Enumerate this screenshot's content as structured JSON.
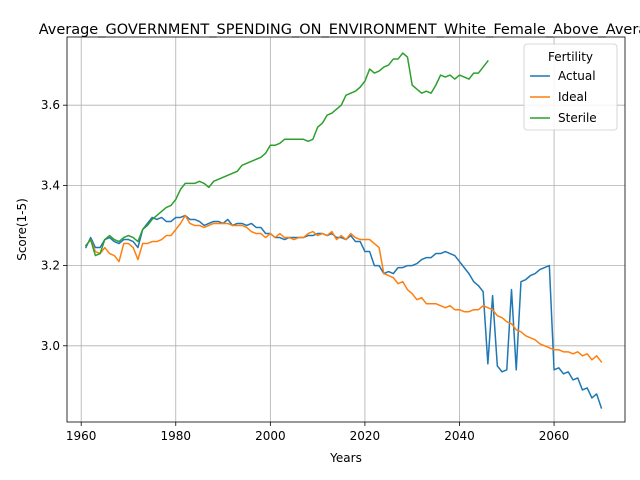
{
  "chart_data": {
    "type": "line",
    "title": "Average_GOVERNMENT_SPENDING_ON_ENVIRONMENT_White_Female_Above_Average",
    "xlabel": "Years",
    "ylabel": "Score(1-5)",
    "xlim": [
      1957,
      2075
    ],
    "ylim": [
      2.81,
      3.77
    ],
    "xticks": [
      1960,
      1980,
      2000,
      2020,
      2040,
      2060
    ],
    "yticks": [
      3.0,
      3.2,
      3.4,
      3.6
    ],
    "ytick_labels": [
      "3.0",
      "3.2",
      "3.4",
      "3.6"
    ],
    "grid": true,
    "legend": {
      "title": "Fertility",
      "position": "top-right"
    },
    "series": [
      {
        "name": "Actual",
        "color": "#1f77b4",
        "x": [
          1961,
          1962,
          1963,
          1964,
          1965,
          1966,
          1967,
          1968,
          1969,
          1970,
          1971,
          1972,
          1973,
          1974,
          1975,
          1976,
          1977,
          1978,
          1979,
          1980,
          1981,
          1982,
          1983,
          1984,
          1985,
          1986,
          1987,
          1988,
          1989,
          1990,
          1991,
          1992,
          1993,
          1994,
          1995,
          1996,
          1997,
          1998,
          1999,
          2000,
          2001,
          2002,
          2003,
          2004,
          2005,
          2006,
          2007,
          2008,
          2009,
          2010,
          2011,
          2012,
          2013,
          2014,
          2015,
          2016,
          2017,
          2018,
          2019,
          2020,
          2021,
          2022,
          2023,
          2024,
          2025,
          2026,
          2027,
          2028,
          2029,
          2030,
          2031,
          2032,
          2033,
          2034,
          2035,
          2036,
          2037,
          2038,
          2039,
          2040,
          2041,
          2042,
          2043,
          2044,
          2045,
          2046,
          2047,
          2048,
          2049,
          2050,
          2051,
          2052,
          2053,
          2054,
          2055,
          2056,
          2057,
          2058,
          2059,
          2060,
          2061,
          2062,
          2063,
          2064,
          2065,
          2066,
          2067,
          2068,
          2069,
          2070
        ],
        "values": [
          3.245,
          3.27,
          3.245,
          3.245,
          3.265,
          3.27,
          3.26,
          3.255,
          3.265,
          3.265,
          3.26,
          3.245,
          3.29,
          3.305,
          3.32,
          3.315,
          3.32,
          3.31,
          3.31,
          3.32,
          3.32,
          3.325,
          3.315,
          3.315,
          3.31,
          3.3,
          3.305,
          3.31,
          3.31,
          3.305,
          3.315,
          3.3,
          3.305,
          3.305,
          3.3,
          3.305,
          3.295,
          3.295,
          3.28,
          3.28,
          3.27,
          3.27,
          3.265,
          3.27,
          3.27,
          3.27,
          3.27,
          3.275,
          3.275,
          3.28,
          3.28,
          3.275,
          3.28,
          3.27,
          3.27,
          3.265,
          3.275,
          3.26,
          3.26,
          3.235,
          3.235,
          3.2,
          3.2,
          3.18,
          3.185,
          3.18,
          3.195,
          3.195,
          3.2,
          3.2,
          3.205,
          3.215,
          3.22,
          3.22,
          3.23,
          3.23,
          3.235,
          3.23,
          3.225,
          3.21,
          3.195,
          3.18,
          3.16,
          3.15,
          3.135,
          2.955,
          3.125,
          2.95,
          2.935,
          2.94,
          3.14,
          2.94,
          3.16,
          3.165,
          3.175,
          3.18,
          3.19,
          3.195,
          3.2,
          2.94,
          2.945,
          2.93,
          2.935,
          2.915,
          2.92,
          2.89,
          2.895,
          2.87,
          2.88,
          2.845
        ]
      },
      {
        "name": "Ideal",
        "color": "#ff7f0e",
        "x": [
          1961,
          1962,
          1963,
          1964,
          1965,
          1966,
          1967,
          1968,
          1969,
          1970,
          1971,
          1972,
          1973,
          1974,
          1975,
          1976,
          1977,
          1978,
          1979,
          1980,
          1981,
          1982,
          1983,
          1984,
          1985,
          1986,
          1987,
          1988,
          1989,
          1990,
          1991,
          1992,
          1993,
          1994,
          1995,
          1996,
          1997,
          1998,
          1999,
          2000,
          2001,
          2002,
          2003,
          2004,
          2005,
          2006,
          2007,
          2008,
          2009,
          2010,
          2011,
          2012,
          2013,
          2014,
          2015,
          2016,
          2017,
          2018,
          2019,
          2020,
          2021,
          2022,
          2023,
          2024,
          2025,
          2026,
          2027,
          2028,
          2029,
          2030,
          2031,
          2032,
          2033,
          2034,
          2035,
          2036,
          2037,
          2038,
          2039,
          2040,
          2041,
          2042,
          2043,
          2044,
          2045,
          2046,
          2047,
          2048,
          2049,
          2050,
          2051,
          2052,
          2053,
          2054,
          2055,
          2056,
          2057,
          2058,
          2059,
          2060,
          2061,
          2062,
          2063,
          2064,
          2065,
          2066,
          2067,
          2068,
          2069,
          2070
        ],
        "values": [
          3.25,
          3.265,
          3.235,
          3.23,
          3.245,
          3.23,
          3.225,
          3.21,
          3.255,
          3.255,
          3.245,
          3.215,
          3.255,
          3.255,
          3.26,
          3.26,
          3.265,
          3.275,
          3.275,
          3.29,
          3.305,
          3.325,
          3.305,
          3.3,
          3.3,
          3.295,
          3.3,
          3.305,
          3.305,
          3.305,
          3.305,
          3.3,
          3.3,
          3.3,
          3.295,
          3.285,
          3.28,
          3.28,
          3.27,
          3.28,
          3.27,
          3.28,
          3.27,
          3.27,
          3.265,
          3.27,
          3.27,
          3.28,
          3.285,
          3.275,
          3.28,
          3.275,
          3.285,
          3.265,
          3.275,
          3.265,
          3.28,
          3.27,
          3.265,
          3.265,
          3.265,
          3.255,
          3.245,
          3.18,
          3.175,
          3.17,
          3.155,
          3.16,
          3.14,
          3.13,
          3.115,
          3.12,
          3.105,
          3.105,
          3.105,
          3.1,
          3.095,
          3.1,
          3.09,
          3.09,
          3.085,
          3.085,
          3.09,
          3.09,
          3.1,
          3.095,
          3.09,
          3.075,
          3.07,
          3.06,
          3.055,
          3.04,
          3.035,
          3.025,
          3.02,
          3.015,
          3.005,
          3.0,
          2.995,
          2.99,
          2.99,
          2.985,
          2.985,
          2.98,
          2.985,
          2.975,
          2.98,
          2.965,
          2.975,
          2.96
        ]
      },
      {
        "name": "Sterile",
        "color": "#2ca02c",
        "x": [
          1961,
          1962,
          1963,
          1964,
          1965,
          1966,
          1967,
          1968,
          1969,
          1970,
          1971,
          1972,
          1973,
          1974,
          1975,
          1976,
          1977,
          1978,
          1979,
          1980,
          1981,
          1982,
          1983,
          1984,
          1985,
          1986,
          1987,
          1988,
          1989,
          1990,
          1991,
          1992,
          1993,
          1994,
          1995,
          1996,
          1997,
          1998,
          1999,
          2000,
          2001,
          2002,
          2003,
          2004,
          2005,
          2006,
          2007,
          2008,
          2009,
          2010,
          2011,
          2012,
          2013,
          2014,
          2015,
          2016,
          2017,
          2018,
          2019,
          2020,
          2021,
          2022,
          2023,
          2024,
          2025,
          2026,
          2027,
          2028,
          2029,
          2030,
          2031,
          2032,
          2033,
          2034,
          2035,
          2036,
          2037,
          2038,
          2039,
          2040,
          2041,
          2042,
          2043,
          2044,
          2045,
          2046
        ],
        "values": [
          3.25,
          3.265,
          3.225,
          3.23,
          3.265,
          3.275,
          3.265,
          3.26,
          3.27,
          3.275,
          3.27,
          3.26,
          3.29,
          3.3,
          3.315,
          3.325,
          3.335,
          3.345,
          3.35,
          3.365,
          3.39,
          3.405,
          3.405,
          3.405,
          3.41,
          3.405,
          3.395,
          3.41,
          3.415,
          3.42,
          3.425,
          3.43,
          3.435,
          3.45,
          3.455,
          3.46,
          3.465,
          3.47,
          3.48,
          3.5,
          3.5,
          3.505,
          3.515,
          3.515,
          3.515,
          3.515,
          3.515,
          3.51,
          3.515,
          3.545,
          3.555,
          3.575,
          3.58,
          3.59,
          3.6,
          3.625,
          3.63,
          3.635,
          3.645,
          3.66,
          3.69,
          3.68,
          3.685,
          3.695,
          3.7,
          3.715,
          3.715,
          3.73,
          3.72,
          3.65,
          3.64,
          3.63,
          3.635,
          3.63,
          3.65,
          3.675,
          3.67,
          3.675,
          3.665,
          3.675,
          3.67,
          3.665,
          3.68,
          3.68,
          3.695,
          3.71
        ]
      }
    ]
  }
}
